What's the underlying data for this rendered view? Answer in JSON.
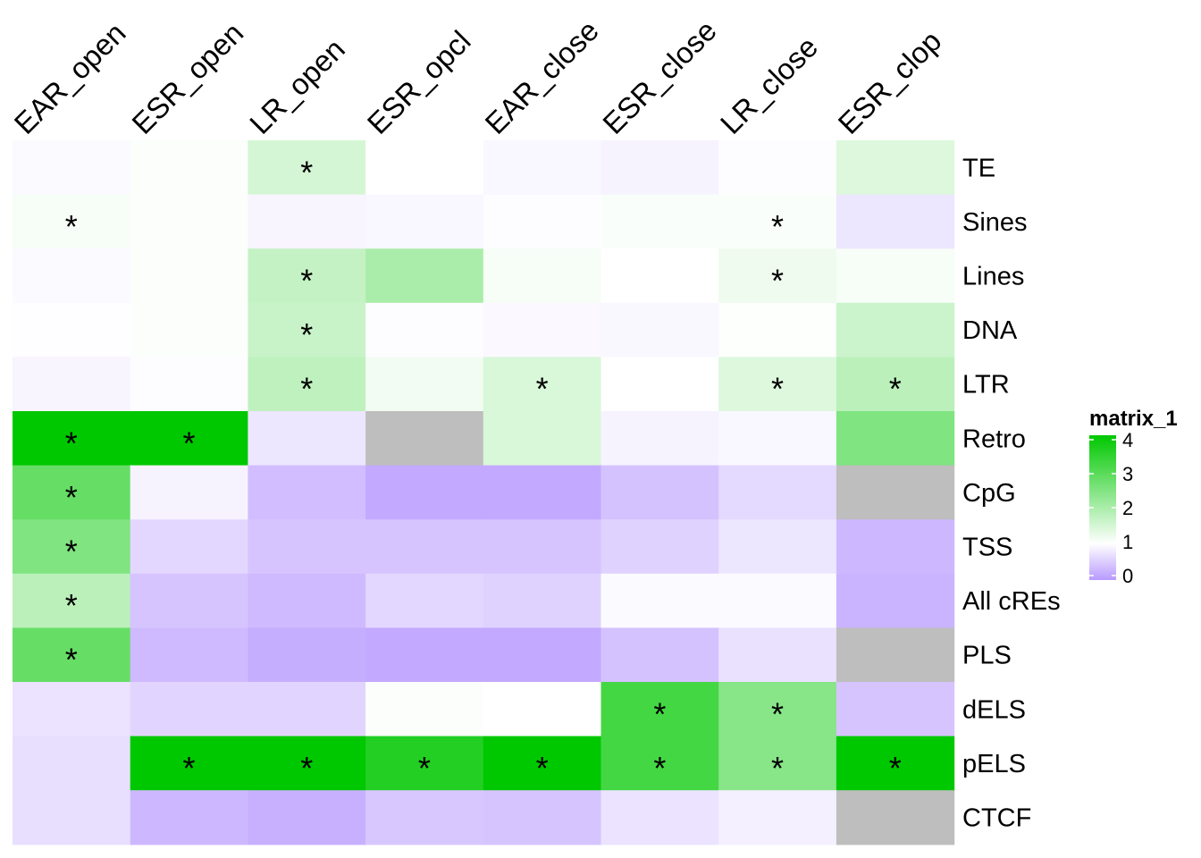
{
  "chart_data": {
    "type": "heatmap",
    "columns": [
      "EAR_open",
      "ESR_open",
      "LR_open",
      "ESR_opcl",
      "EAR_close",
      "ESR_close",
      "LR_close",
      "ESR_clop"
    ],
    "rows": [
      "TE",
      "Sines",
      "Lines",
      "DNA",
      "LTR",
      "Retro",
      "CpG",
      "TSS",
      "All cREs",
      "PLS",
      "dELS",
      "pELS",
      "CTCF"
    ],
    "values": [
      [
        0.95,
        1.05,
        1.5,
        1.0,
        0.92,
        0.88,
        0.97,
        1.4
      ],
      [
        1.1,
        1.04,
        0.9,
        0.92,
        0.97,
        1.06,
        1.06,
        0.75
      ],
      [
        0.95,
        1.05,
        1.7,
        2.0,
        1.1,
        1.0,
        1.2,
        1.1
      ],
      [
        0.98,
        1.03,
        1.65,
        0.97,
        0.94,
        0.93,
        1.02,
        1.6
      ],
      [
        0.9,
        0.97,
        1.75,
        1.15,
        1.45,
        1.01,
        1.4,
        1.8
      ],
      [
        4.0,
        4.0,
        0.75,
        null,
        1.45,
        0.88,
        0.92,
        2.5
      ],
      [
        2.8,
        0.88,
        0.35,
        0.15,
        0.15,
        0.4,
        0.62,
        null
      ],
      [
        2.5,
        0.6,
        0.42,
        0.42,
        0.42,
        0.55,
        0.75,
        0.3
      ],
      [
        1.8,
        0.42,
        0.32,
        0.6,
        0.55,
        0.95,
        0.95,
        0.25
      ],
      [
        2.8,
        0.32,
        0.2,
        0.15,
        0.15,
        0.4,
        0.7,
        null
      ],
      [
        0.72,
        0.58,
        0.58,
        1.03,
        1.0,
        3.2,
        2.4,
        0.42
      ],
      [
        0.68,
        4.0,
        4.0,
        3.6,
        4.0,
        3.2,
        2.4,
        4.0
      ],
      [
        0.68,
        0.3,
        0.22,
        0.45,
        0.42,
        0.72,
        0.85,
        null
      ]
    ],
    "significant": [
      [
        false,
        false,
        true,
        false,
        false,
        false,
        false,
        false
      ],
      [
        true,
        false,
        false,
        false,
        false,
        false,
        true,
        false
      ],
      [
        false,
        false,
        true,
        false,
        false,
        false,
        true,
        false
      ],
      [
        false,
        false,
        true,
        false,
        false,
        false,
        false,
        false
      ],
      [
        false,
        false,
        true,
        false,
        true,
        false,
        true,
        true
      ],
      [
        true,
        true,
        false,
        false,
        false,
        false,
        false,
        false
      ],
      [
        true,
        false,
        false,
        false,
        false,
        false,
        false,
        false
      ],
      [
        true,
        false,
        false,
        false,
        false,
        false,
        false,
        false
      ],
      [
        true,
        false,
        false,
        false,
        false,
        false,
        false,
        false
      ],
      [
        true,
        false,
        false,
        false,
        false,
        false,
        false,
        false
      ],
      [
        false,
        false,
        false,
        false,
        false,
        true,
        true,
        false
      ],
      [
        false,
        true,
        true,
        true,
        true,
        true,
        true,
        true
      ],
      [
        false,
        false,
        false,
        false,
        false,
        false,
        false,
        false
      ]
    ],
    "significance_marker": "*",
    "na_color": "#BEBEBE",
    "color_scale": {
      "stops": [
        {
          "value": 0,
          "color": "#B89AFF"
        },
        {
          "value": 1,
          "color": "#FFFFFF"
        },
        {
          "value": 4,
          "color": "#00C800"
        }
      ]
    },
    "legend": {
      "title": "matrix_1",
      "ticks": [
        "4",
        "3",
        "2",
        "1",
        "0"
      ],
      "range": [
        0,
        4
      ],
      "position": "right"
    }
  }
}
